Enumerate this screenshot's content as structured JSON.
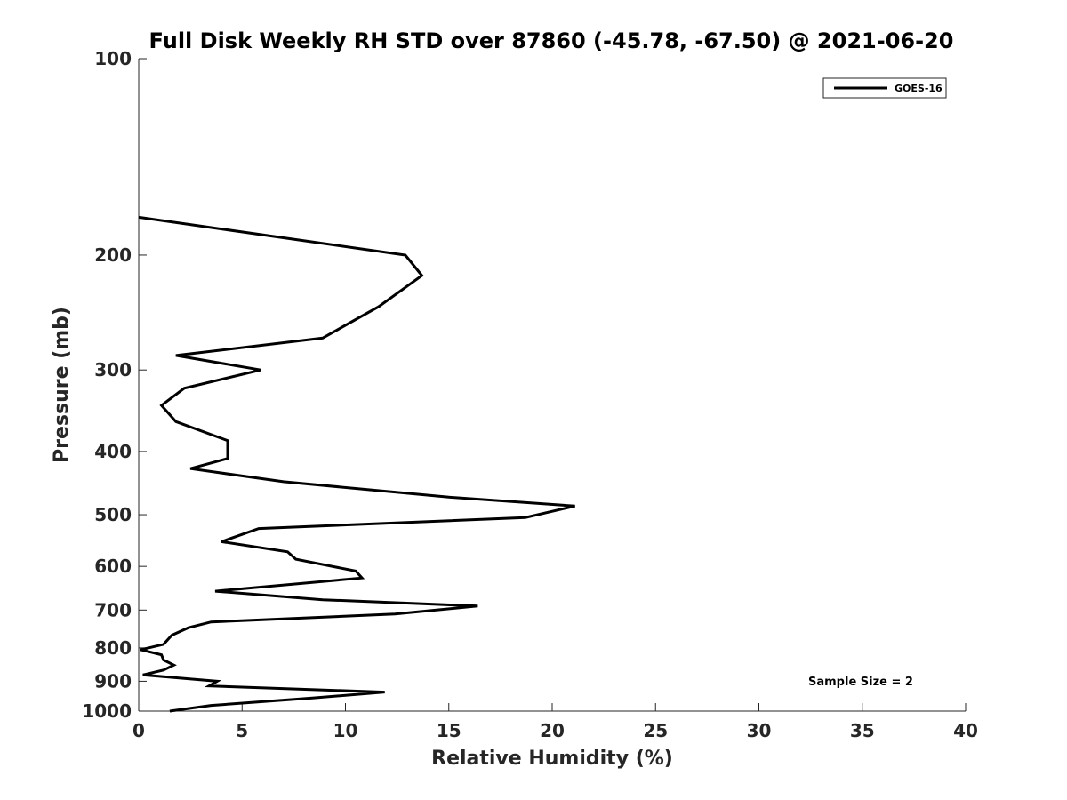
{
  "chart_data": {
    "type": "line",
    "title": "Full Disk Weekly RH STD over 87860 (-45.78, -67.50) @ 2021-06-20",
    "xlabel": "Relative Humidity (%)",
    "ylabel": "Pressure (mb)",
    "xlim": [
      0,
      40
    ],
    "ylim": [
      100,
      1000
    ],
    "y_scale": "log",
    "y_reversed": true,
    "xticks": [
      0,
      5,
      10,
      15,
      20,
      25,
      30,
      35,
      40
    ],
    "yticks": [
      100,
      200,
      300,
      400,
      500,
      600,
      700,
      800,
      900,
      1000
    ],
    "grid": false,
    "legend_position": "top-right",
    "annotation": "Sample Size = 2",
    "line_color": "#000000",
    "series": [
      {
        "name": "GOES-16",
        "x": [
          0.0,
          12.9,
          13.7,
          11.6,
          8.9,
          1.8,
          5.9,
          2.2,
          1.1,
          1.8,
          4.3,
          4.3,
          2.5,
          7.0,
          15.0,
          21.1,
          18.7,
          5.8,
          4.0,
          7.2,
          7.6,
          10.5,
          10.8,
          3.7,
          8.9,
          16.4,
          12.4,
          3.5,
          2.4,
          1.6,
          1.2,
          0.1,
          1.1,
          1.2,
          1.7,
          1.2,
          0.2,
          3.8,
          3.4,
          11.9,
          8.4,
          3.5,
          1.5
        ],
        "y": [
          175,
          200,
          215,
          240,
          268,
          285,
          300,
          320,
          340,
          360,
          385,
          410,
          425,
          445,
          470,
          485,
          505,
          525,
          550,
          570,
          585,
          610,
          625,
          655,
          675,
          690,
          710,
          730,
          745,
          765,
          790,
          805,
          820,
          835,
          850,
          865,
          880,
          900,
          915,
          935,
          955,
          980,
          1000
        ]
      }
    ]
  }
}
